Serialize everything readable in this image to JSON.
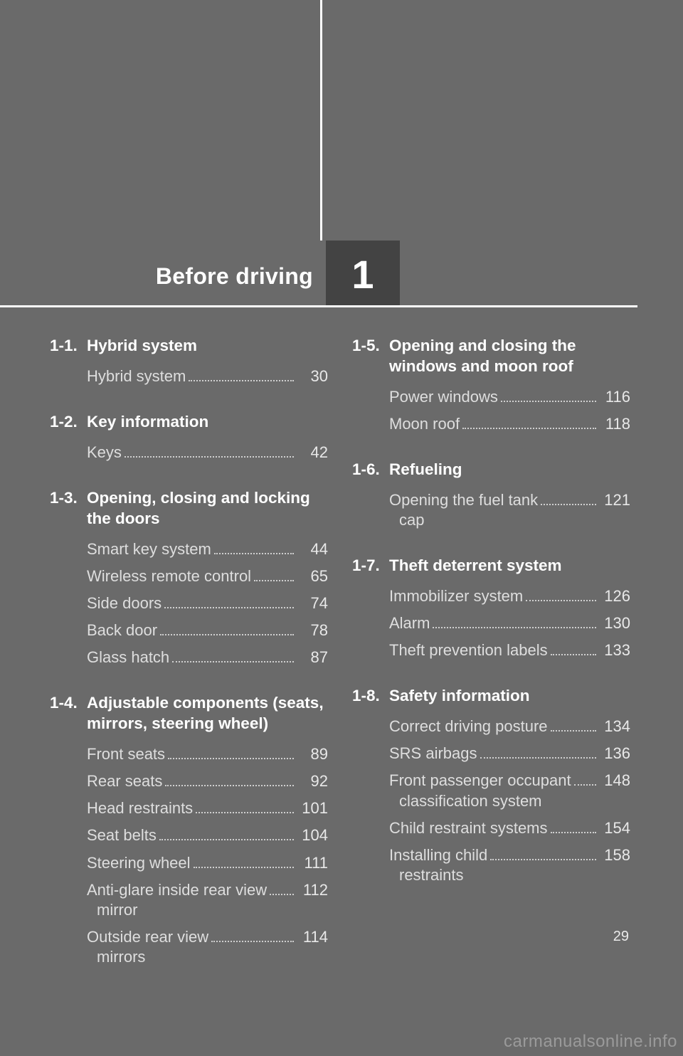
{
  "chapter": {
    "title": "Before driving",
    "number": "1"
  },
  "page_number": "29",
  "watermark": "carmanualsonline.info",
  "colors": {
    "background": "#6a6a6a",
    "box": "#434343",
    "rule": "#ffffff",
    "heading": "#ffffff",
    "body": "#dedede"
  },
  "sections_left": [
    {
      "num": "1-1.",
      "title": "Hybrid system",
      "entries": [
        {
          "label": "Hybrid system",
          "page": "30"
        }
      ]
    },
    {
      "num": "1-2.",
      "title": "Key information",
      "entries": [
        {
          "label": "Keys",
          "page": "42"
        }
      ]
    },
    {
      "num": "1-3.",
      "title": "Opening, closing and locking the doors",
      "entries": [
        {
          "label": "Smart key system",
          "page": "44"
        },
        {
          "label": "Wireless remote control",
          "page": "65"
        },
        {
          "label": "Side doors",
          "page": "74"
        },
        {
          "label": "Back door",
          "page": "78"
        },
        {
          "label": "Glass hatch",
          "page": "87"
        }
      ]
    },
    {
      "num": "1-4.",
      "title": "Adjustable components (seats, mirrors, steering wheel)",
      "entries": [
        {
          "label": "Front seats",
          "page": "89"
        },
        {
          "label": "Rear seats",
          "page": "92"
        },
        {
          "label": "Head restraints",
          "page": "101"
        },
        {
          "label": "Seat belts",
          "page": "104"
        },
        {
          "label": "Steering wheel",
          "page": "111"
        },
        {
          "label": "Anti-glare inside rear view",
          "sub": "mirror",
          "page": "112"
        },
        {
          "label": "Outside rear view",
          "sub": "mirrors",
          "page": "114"
        }
      ]
    }
  ],
  "sections_right": [
    {
      "num": "1-5.",
      "title": "Opening and closing the windows and moon roof",
      "entries": [
        {
          "label": "Power windows",
          "page": "116"
        },
        {
          "label": "Moon roof",
          "page": "118"
        }
      ]
    },
    {
      "num": "1-6.",
      "title": "Refueling",
      "entries": [
        {
          "label": "Opening the fuel tank",
          "sub": "cap",
          "page": "121"
        }
      ]
    },
    {
      "num": "1-7.",
      "title": "Theft deterrent system",
      "entries": [
        {
          "label": "Immobilizer system",
          "page": "126"
        },
        {
          "label": "Alarm",
          "page": "130"
        },
        {
          "label": "Theft prevention labels",
          "page": "133"
        }
      ]
    },
    {
      "num": "1-8.",
      "title": "Safety information",
      "entries": [
        {
          "label": "Correct driving posture",
          "page": "134"
        },
        {
          "label": "SRS airbags",
          "page": "136"
        },
        {
          "label": "Front passenger occupant",
          "sub": "classification system",
          "page": "148"
        },
        {
          "label": "Child restraint systems",
          "page": "154"
        },
        {
          "label": "Installing child",
          "sub": "restraints",
          "page": "158"
        }
      ]
    }
  ]
}
